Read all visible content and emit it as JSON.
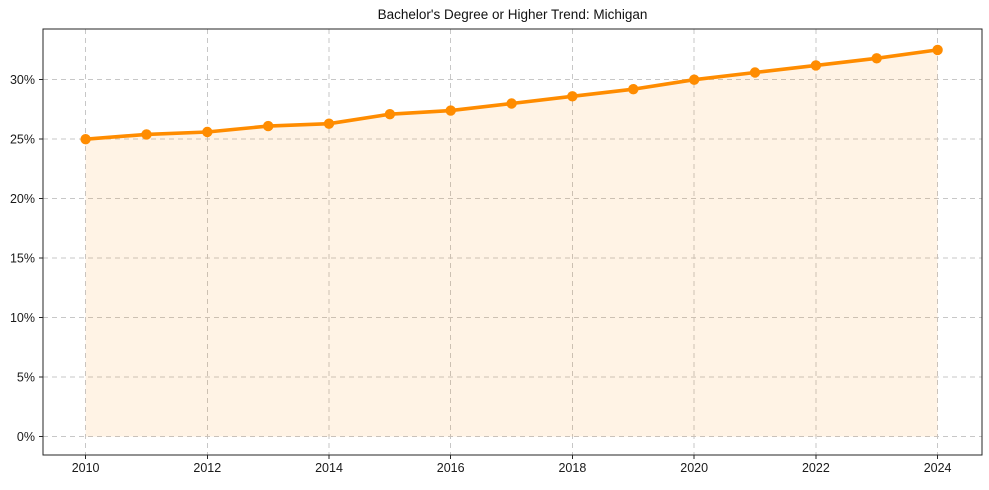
{
  "chart_data": {
    "type": "line",
    "title": "Bachelor's Degree or Higher Trend: Michigan",
    "xlabel": "",
    "ylabel": "",
    "unit": "%",
    "x": [
      2010,
      2011,
      2012,
      2013,
      2014,
      2015,
      2016,
      2017,
      2018,
      2019,
      2020,
      2021,
      2022,
      2023,
      2024
    ],
    "values": [
      25.0,
      25.4,
      25.6,
      26.1,
      26.3,
      27.1,
      27.4,
      28.0,
      28.6,
      29.2,
      30.0,
      30.6,
      31.2,
      31.8,
      32.5
    ],
    "xticks": [
      2010,
      2012,
      2014,
      2016,
      2018,
      2020,
      2022,
      2024
    ],
    "xticklabels": [
      "2010",
      "2012",
      "2014",
      "2016",
      "2018",
      "2020",
      "2022",
      "2024"
    ],
    "yticks": [
      0,
      5,
      10,
      15,
      20,
      25,
      30
    ],
    "yticklabels": [
      "0%",
      "5%",
      "10%",
      "15%",
      "20%",
      "25%",
      "30%"
    ],
    "xlim": [
      2009.3,
      2024.73
    ],
    "ylim": [
      -1.55,
      34.26
    ],
    "grid": true,
    "grid_style": "dashed",
    "legend": false,
    "marker": "circle",
    "area_fill": true,
    "colors": {
      "line": "#ff8c00",
      "marker": "#ff8c00",
      "fill": "rgba(255,140,0,0.10)",
      "grid": "#c7c7c7",
      "spine": "#262626",
      "tick_label": "#1a1a1a",
      "title": "#111111",
      "background": "#ffffff"
    }
  }
}
